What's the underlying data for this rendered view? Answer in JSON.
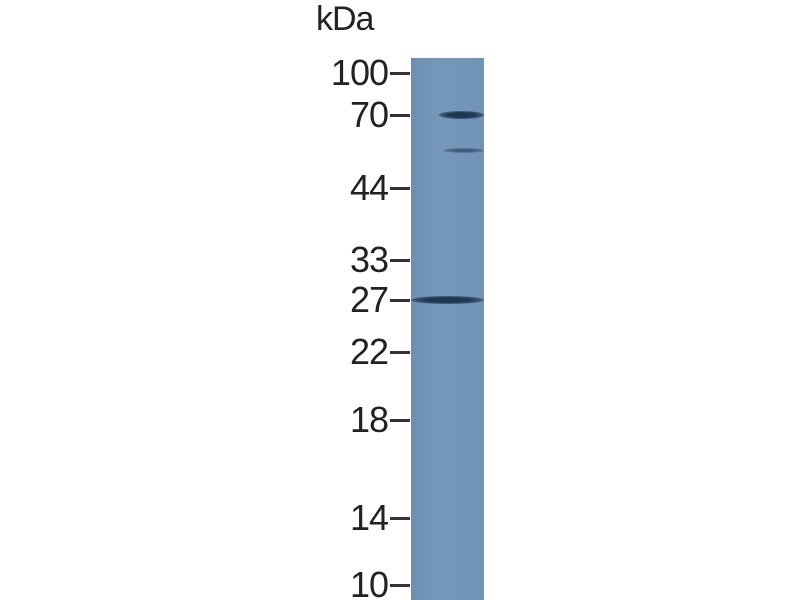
{
  "unit_label": "kDa",
  "markers": [
    "100",
    "70",
    "44",
    "33",
    "27",
    "22",
    "18",
    "14",
    "10"
  ],
  "lane_color": "#7093b6",
  "bands": [
    {
      "kda": 70,
      "intensity": "strong"
    },
    {
      "kda": 56,
      "intensity": "faint"
    },
    {
      "kda": 27,
      "intensity": "strong"
    }
  ]
}
